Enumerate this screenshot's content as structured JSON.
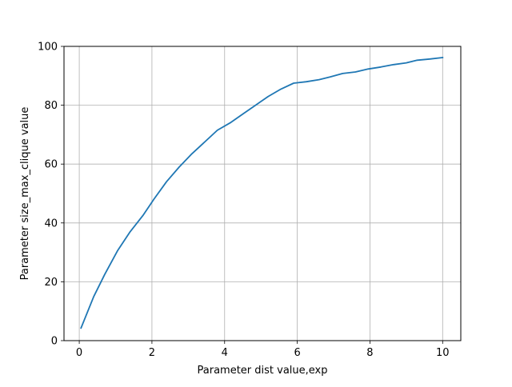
{
  "chart_data": {
    "type": "line",
    "title": "",
    "xlabel": "Parameter dist value,exp",
    "ylabel": "Parameter size_max_clique value",
    "xlim": [
      -0.42,
      10.5
    ],
    "ylim": [
      0,
      100
    ],
    "xticks": [
      0,
      2,
      4,
      6,
      8,
      10
    ],
    "yticks": [
      0,
      20,
      40,
      60,
      80,
      100
    ],
    "grid": true,
    "legend": "none",
    "series": [
      {
        "color": "#1f77b4",
        "x": [
          0.05,
          0.4,
          0.7,
          1.05,
          1.4,
          1.75,
          2.05,
          2.4,
          2.75,
          3.1,
          3.45,
          3.8,
          4.15,
          4.5,
          4.85,
          5.2,
          5.55,
          5.9,
          6.25,
          6.6,
          6.9,
          7.25,
          7.6,
          7.95,
          8.3,
          8.65,
          9.0,
          9.3,
          9.65,
          10.0
        ],
        "y": [
          4.3,
          15,
          22.5,
          30.5,
          37,
          42.5,
          48,
          54,
          59,
          63.5,
          67.5,
          71.5,
          74,
          77,
          80,
          83,
          85.5,
          87.5,
          88,
          88.7,
          89.6,
          90.8,
          91.3,
          92.3,
          93,
          93.8,
          94.4,
          95.3,
          95.7,
          96.2
        ]
      }
    ]
  }
}
